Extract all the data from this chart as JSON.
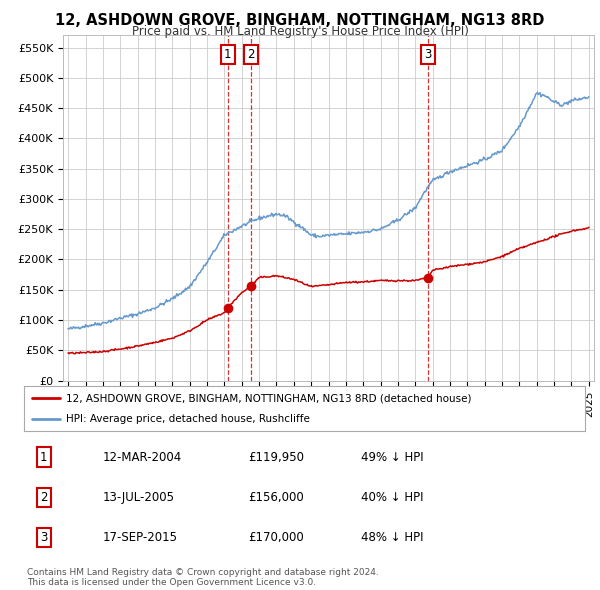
{
  "title": "12, ASHDOWN GROVE, BINGHAM, NOTTINGHAM, NG13 8RD",
  "subtitle": "Price paid vs. HM Land Registry's House Price Index (HPI)",
  "ylabel_ticks": [
    "£0",
    "£50K",
    "£100K",
    "£150K",
    "£200K",
    "£250K",
    "£300K",
    "£350K",
    "£400K",
    "£450K",
    "£500K",
    "£550K"
  ],
  "ytick_vals": [
    0,
    50000,
    100000,
    150000,
    200000,
    250000,
    300000,
    350000,
    400000,
    450000,
    500000,
    550000
  ],
  "ylim": [
    0,
    570000
  ],
  "xlim_start": 1994.7,
  "xlim_end": 2025.3,
  "red_color": "#cc0000",
  "blue_color": "#6699cc",
  "sale1_x": 2004.19,
  "sale1_y": 119950,
  "sale1_label": "1",
  "sale2_x": 2005.53,
  "sale2_y": 156000,
  "sale2_label": "2",
  "sale3_x": 2015.71,
  "sale3_y": 170000,
  "sale3_label": "3",
  "legend_red": "12, ASHDOWN GROVE, BINGHAM, NOTTINGHAM, NG13 8RD (detached house)",
  "legend_blue": "HPI: Average price, detached house, Rushcliffe",
  "table_rows": [
    [
      "1",
      "12-MAR-2004",
      "£119,950",
      "49% ↓ HPI"
    ],
    [
      "2",
      "13-JUL-2005",
      "£156,000",
      "40% ↓ HPI"
    ],
    [
      "3",
      "17-SEP-2015",
      "£170,000",
      "48% ↓ HPI"
    ]
  ],
  "footer": "Contains HM Land Registry data © Crown copyright and database right 2024.\nThis data is licensed under the Open Government Licence v3.0.",
  "bg_color": "#ffffff",
  "grid_color": "#cccccc"
}
